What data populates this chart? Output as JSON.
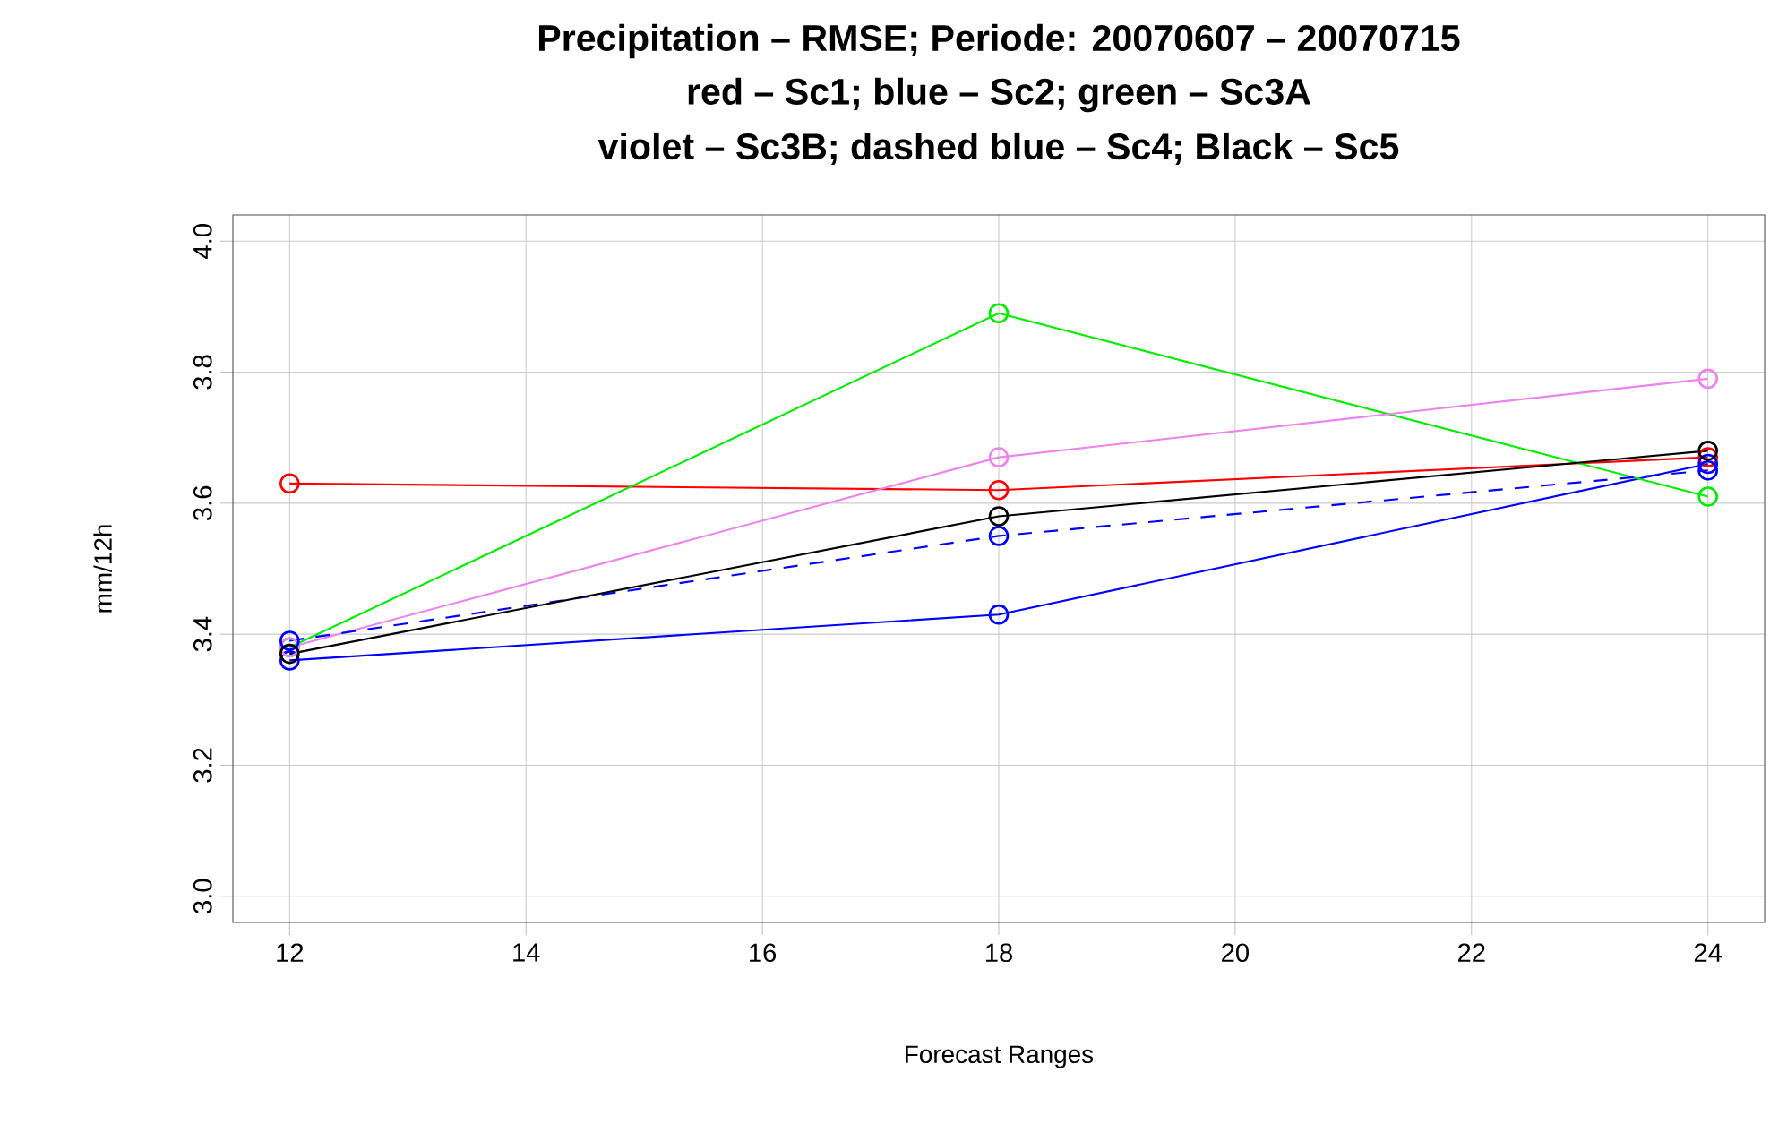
{
  "chart_data": {
    "type": "line",
    "title": "Precipitation – RMSE; Periode: 20070607 – 20070715",
    "subtitle": "red – Sc1; blue – Sc2; green – Sc3A",
    "annotations": [
      "violet – Sc3B; dashed blue – Sc4; Black – Sc5"
    ],
    "xlabel": "Forecast Ranges",
    "ylabel": "mm/12h",
    "x": [
      12,
      18,
      24
    ],
    "series": [
      {
        "color": "#ff0000",
        "values": [
          3.63,
          3.62,
          3.67
        ]
      },
      {
        "color": "#0000ff",
        "values": [
          3.36,
          3.43,
          3.66
        ]
      },
      {
        "color": "#00ee00",
        "values": [
          3.38,
          3.89,
          3.61
        ]
      },
      {
        "color": "#ee82ee",
        "values": [
          3.38,
          3.67,
          3.79
        ]
      },
      {
        "color": "#0000ff",
        "values": [
          3.39,
          3.55,
          3.65
        ],
        "line_style": "dashed"
      },
      {
        "color": "#000000",
        "values": [
          3.37,
          3.58,
          3.68
        ]
      }
    ],
    "xlim": [
      11.52,
      24.48
    ],
    "ylim": [
      2.96,
      4.04
    ],
    "xticks": [
      12,
      14,
      16,
      18,
      20,
      22,
      24
    ],
    "yticks": [
      {
        "value": 3.0,
        "label": "3.0"
      },
      {
        "value": 3.2,
        "label": "3.2"
      },
      {
        "value": 3.4,
        "label": "3.4"
      },
      {
        "value": 3.6,
        "label": "3.6"
      },
      {
        "value": 3.8,
        "label": "3.8"
      },
      {
        "value": 4.0,
        "label": "4.0"
      }
    ],
    "grid": true,
    "marker": "circle",
    "line_style": "solid"
  }
}
